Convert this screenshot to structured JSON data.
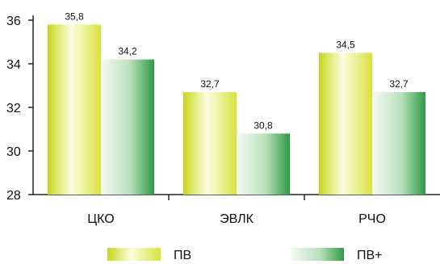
{
  "chart_data": {
    "type": "bar",
    "categories": [
      "ЦКО",
      "ЭВЛК",
      "РЧО"
    ],
    "series": [
      {
        "name": "ПВ",
        "values": [
          35.8,
          32.7,
          34.5
        ],
        "labels": [
          "35,8",
          "32,7",
          "34,5"
        ]
      },
      {
        "name": "ПВ+",
        "values": [
          34.2,
          30.8,
          32.7
        ],
        "labels": [
          "34,2",
          "30,8",
          "32,7"
        ]
      }
    ],
    "ylim": [
      28,
      36
    ],
    "yticks": [
      28,
      30,
      32,
      34,
      36
    ],
    "xlabel": "",
    "ylabel": "",
    "title": "",
    "grid": false,
    "legend_position": "bottom"
  },
  "colors": {
    "series1_light": "#fbfde0",
    "series1_mid": "#e9f27a",
    "series1_dark": "#c9d61a",
    "series2_light": "#f2fbf3",
    "series2_mid": "#9fd3a3",
    "series2_dark": "#2f9a45"
  }
}
